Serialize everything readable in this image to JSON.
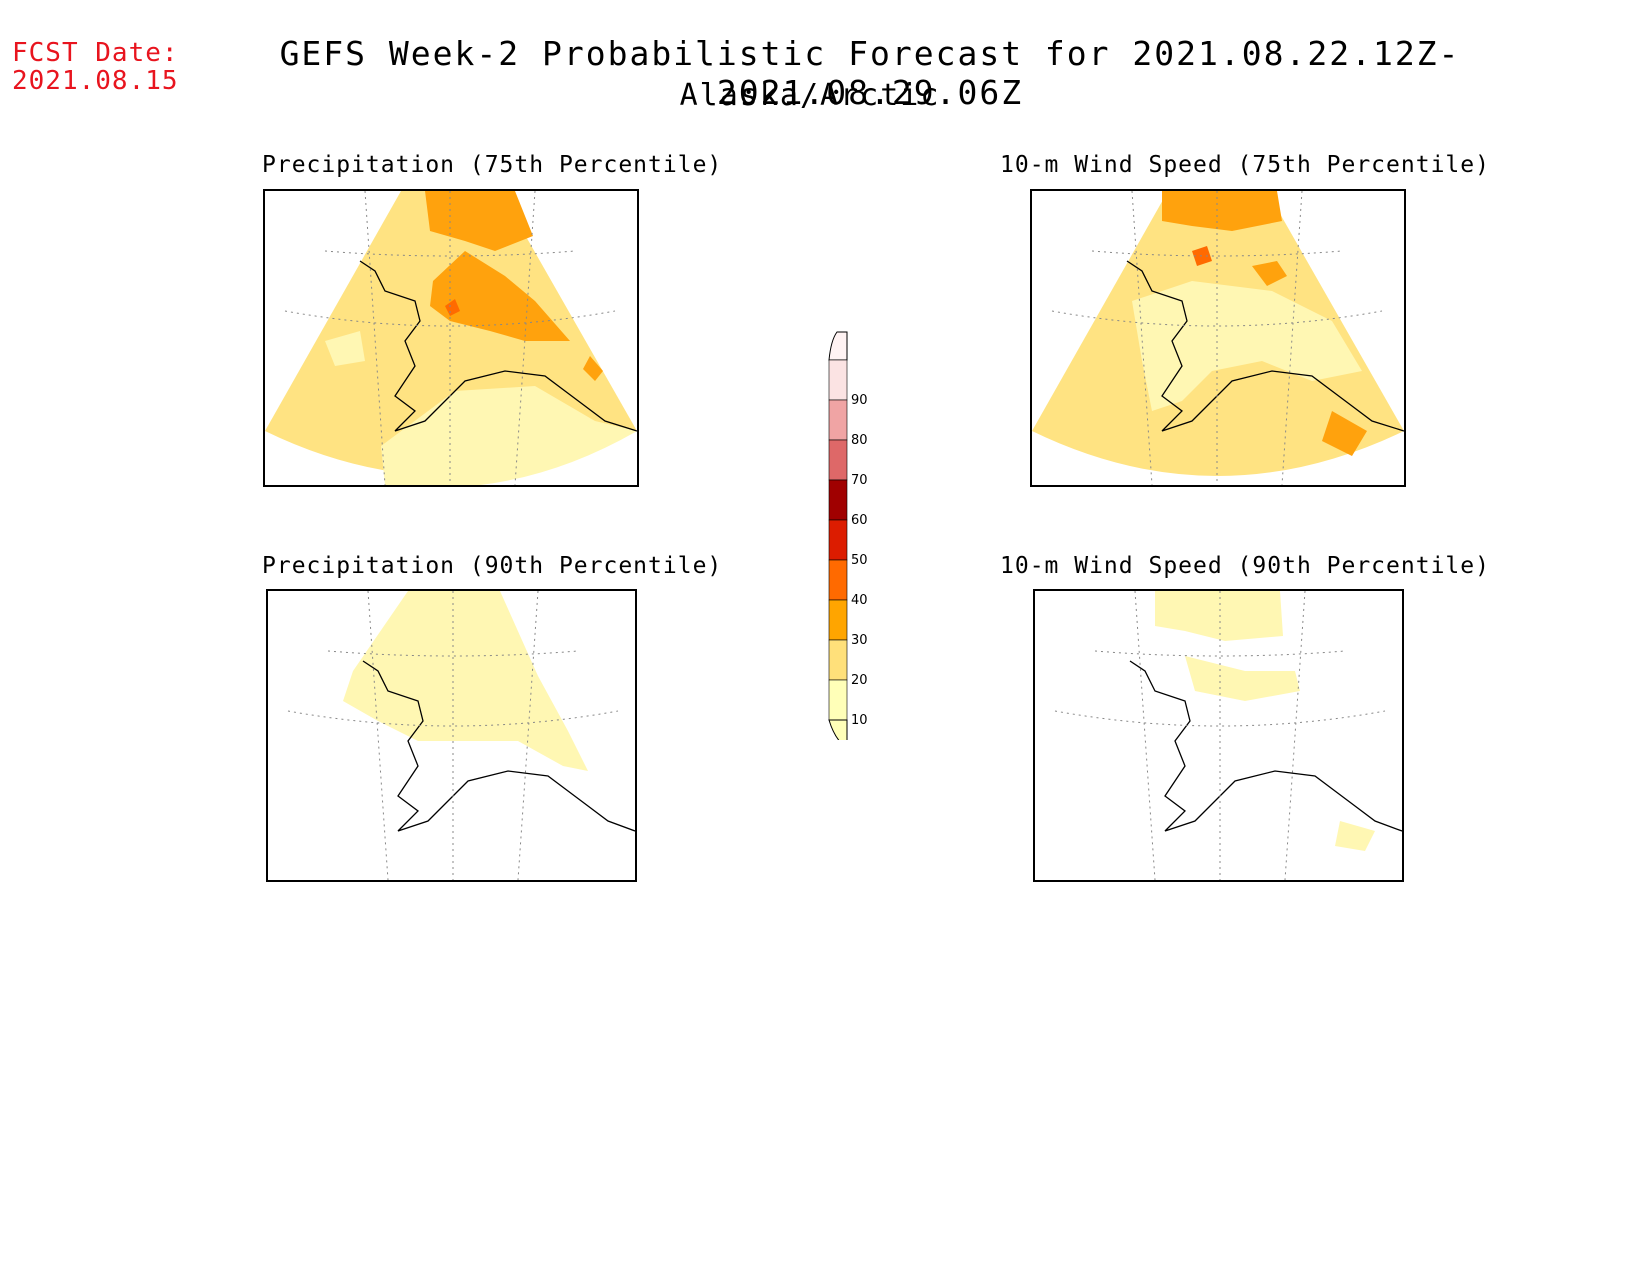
{
  "header": {
    "fcst_label": "FCST Date:",
    "fcst_date": "2021.08.15",
    "title": "GEFS Week-2 Probabilistic Forecast for 2021.08.22.12Z-2021.08.29.06Z",
    "subtitle": "Alaska/Arctic"
  },
  "panels": [
    {
      "id": "precip75",
      "title": "Precipitation (75th Percentile)"
    },
    {
      "id": "wind75",
      "title": "10-m Wind Speed (75th Percentile)"
    },
    {
      "id": "precip90",
      "title": "Precipitation (90th Percentile)"
    },
    {
      "id": "wind90",
      "title": "10-m Wind Speed (90th Percentile)"
    }
  ],
  "colorbar": {
    "levels": [
      {
        "label": "90",
        "color": "#fbe3e3"
      },
      {
        "label": "80",
        "color": "#f0a4a4"
      },
      {
        "label": "70",
        "color": "#de6868"
      },
      {
        "label": "60",
        "color": "#a00000"
      },
      {
        "label": "50",
        "color": "#dc1c00"
      },
      {
        "label": "40",
        "color": "#ff6a00"
      },
      {
        "label": "30",
        "color": "#ffa500"
      },
      {
        "label": "20",
        "color": "#ffe07a"
      },
      {
        "label": "10",
        "color": "#ffffb8"
      }
    ]
  },
  "palette": {
    "light": "#fff7b3",
    "yellow": "#ffe382",
    "orange": "#ffa20d",
    "darkorange": "#ff6a00",
    "red": "#e22a0a"
  }
}
